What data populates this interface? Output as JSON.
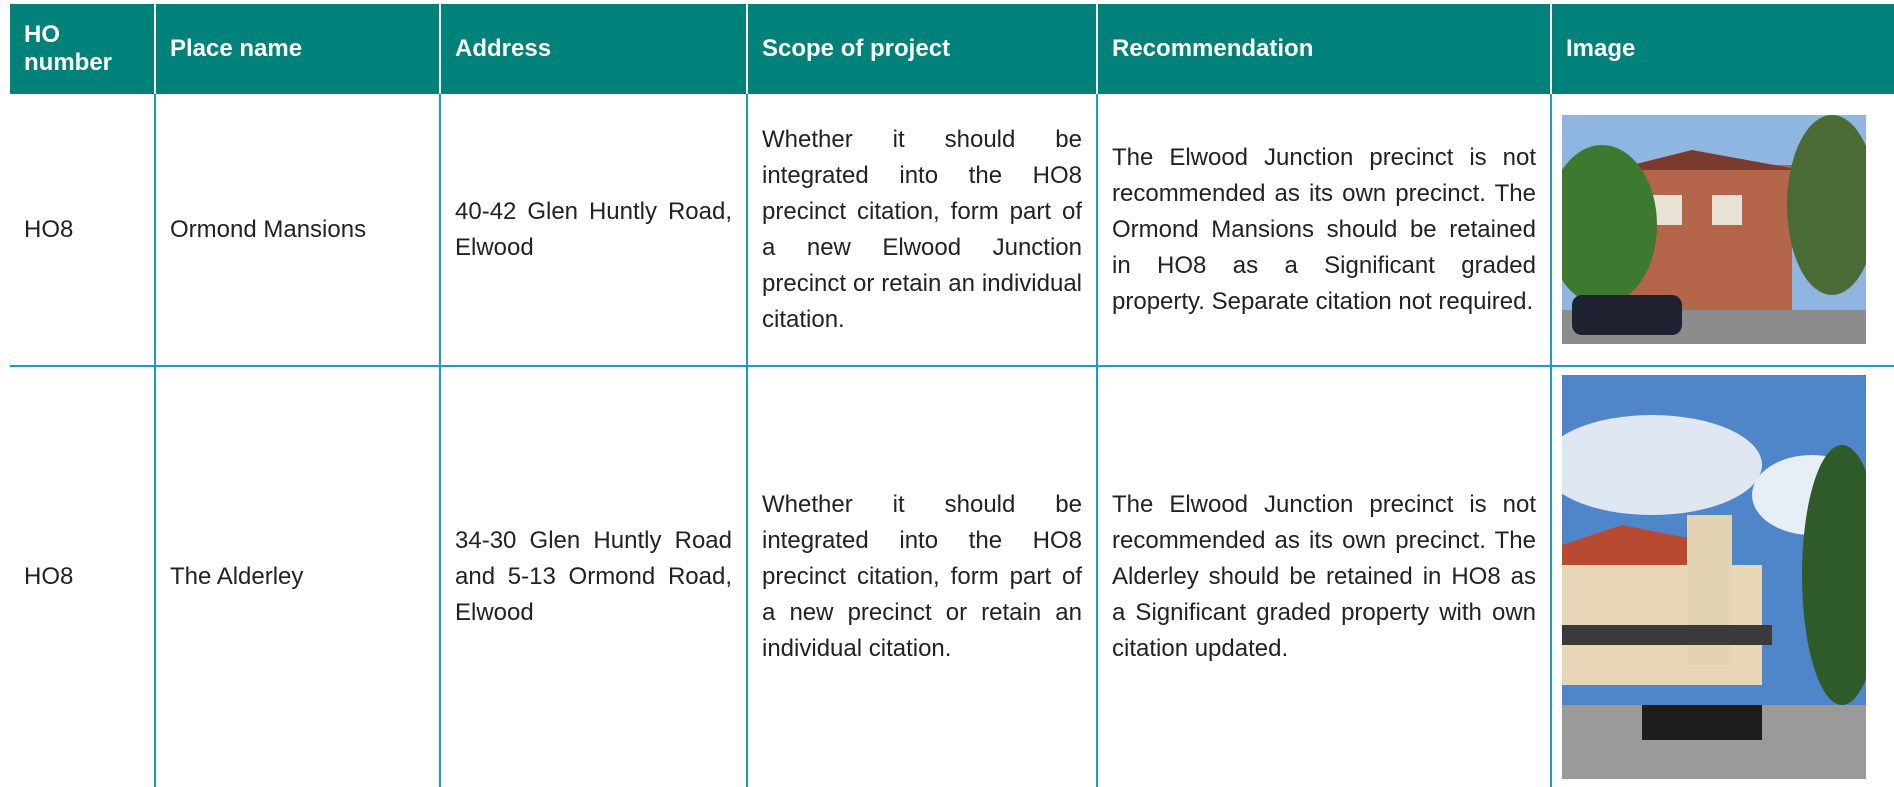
{
  "table": {
    "headers": [
      "HO number",
      "Place name",
      "Address",
      "Scope of project",
      "Recommendation",
      "Image"
    ],
    "rows": [
      [
        "HO8",
        "Ormond Mansions",
        "40-42 Glen Huntly Road, Elwood",
        "Whether it should be integrated into the HO8 precinct citation, form part of a new Elwood Junction precinct or retain an individual citation.",
        "The Elwood Junction precinct is not recommended as its own precinct. The Ormond Mansions should be retained in HO8 as a Significant graded property. Separate citation not required."
      ],
      [
        "HO8",
        "The Alderley",
        "34-30 Glen Huntly Road and 5-13 Ormond Road, Elwood",
        "Whether it should be integrated into the HO8 precinct citation, form part of a new precinct or retain an individual citation.",
        "The Elwood Junction precinct is not recommended as its own precinct. The Alderley should be retained in HO8 as a Significant graded property with own citation updated."
      ]
    ]
  }
}
